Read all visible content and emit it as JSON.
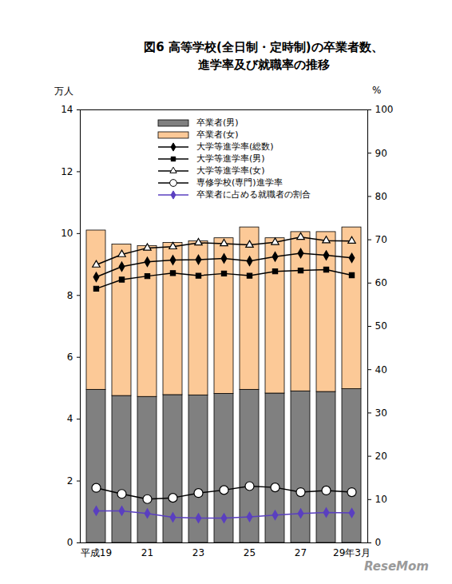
{
  "chart_data": {
    "type": "bar",
    "title": "図6 高等学校(全日制・定時制)の卒業者数、\n進学率及び就職率の推移",
    "y_label": "万人",
    "y2_label": "%",
    "source": "ReseMom",
    "categories": [
      "平成19",
      null,
      "21",
      null,
      "23",
      null,
      "25",
      null,
      "27",
      null,
      "29年3月"
    ],
    "ylim": [
      0,
      14
    ],
    "yticks": [
      0,
      2,
      4,
      6,
      8,
      10,
      12,
      14
    ],
    "y2lim": [
      0,
      100
    ],
    "y2ticks": [
      0,
      10,
      20,
      30,
      40,
      50,
      60,
      70,
      80,
      90,
      100
    ],
    "stacked": true,
    "legend": "top",
    "series": [
      {
        "name": "卒業者(男)",
        "type": "bar",
        "color": "#808080",
        "values": [
          4.95,
          4.75,
          4.72,
          4.78,
          4.77,
          4.82,
          4.95,
          4.83,
          4.9,
          4.88,
          4.97
        ]
      },
      {
        "name": "卒業者(女)",
        "type": "bar",
        "color": "#fcc997",
        "values": [
          5.15,
          4.9,
          4.88,
          4.92,
          4.98,
          5.03,
          5.25,
          5.02,
          5.15,
          5.17,
          5.23
        ]
      },
      {
        "name": "大学等進学率(総数)",
        "type": "line",
        "axis": "y2",
        "color": "#000000",
        "marker": "diamond",
        "values": [
          61.4,
          63.8,
          64.9,
          65.3,
          65.4,
          65.7,
          65.1,
          66.1,
          66.9,
          66.4,
          65.8
        ]
      },
      {
        "name": "大学等進学率(男)",
        "type": "line",
        "axis": "y2",
        "color": "#000000",
        "marker": "square",
        "values": [
          58.7,
          60.8,
          61.6,
          62.3,
          61.7,
          62.2,
          61.7,
          62.7,
          62.9,
          63.1,
          61.8
        ]
      },
      {
        "name": "大学等進学率(女)",
        "type": "line",
        "axis": "y2",
        "color": "#000000",
        "marker": "open_triangle",
        "values": [
          64.2,
          66.6,
          68.1,
          68.4,
          69.3,
          69.1,
          68.8,
          69.4,
          70.6,
          69.8,
          69.7
        ]
      },
      {
        "name": "専修学校(専門)進学率",
        "type": "line",
        "axis": "y2",
        "color": "#000000",
        "marker": "open_circle",
        "values": [
          12.7,
          11.3,
          10.1,
          10.4,
          11.5,
          12.2,
          13.1,
          12.8,
          11.7,
          12.1,
          11.7
        ]
      },
      {
        "name": "卒業者に占める就職者の割合",
        "type": "line",
        "axis": "y2",
        "color": "#5a3fc0",
        "marker": "diamond",
        "values": [
          7.4,
          7.4,
          6.8,
          5.9,
          5.7,
          5.7,
          6.0,
          6.4,
          6.8,
          7.0,
          6.9
        ]
      }
    ]
  }
}
